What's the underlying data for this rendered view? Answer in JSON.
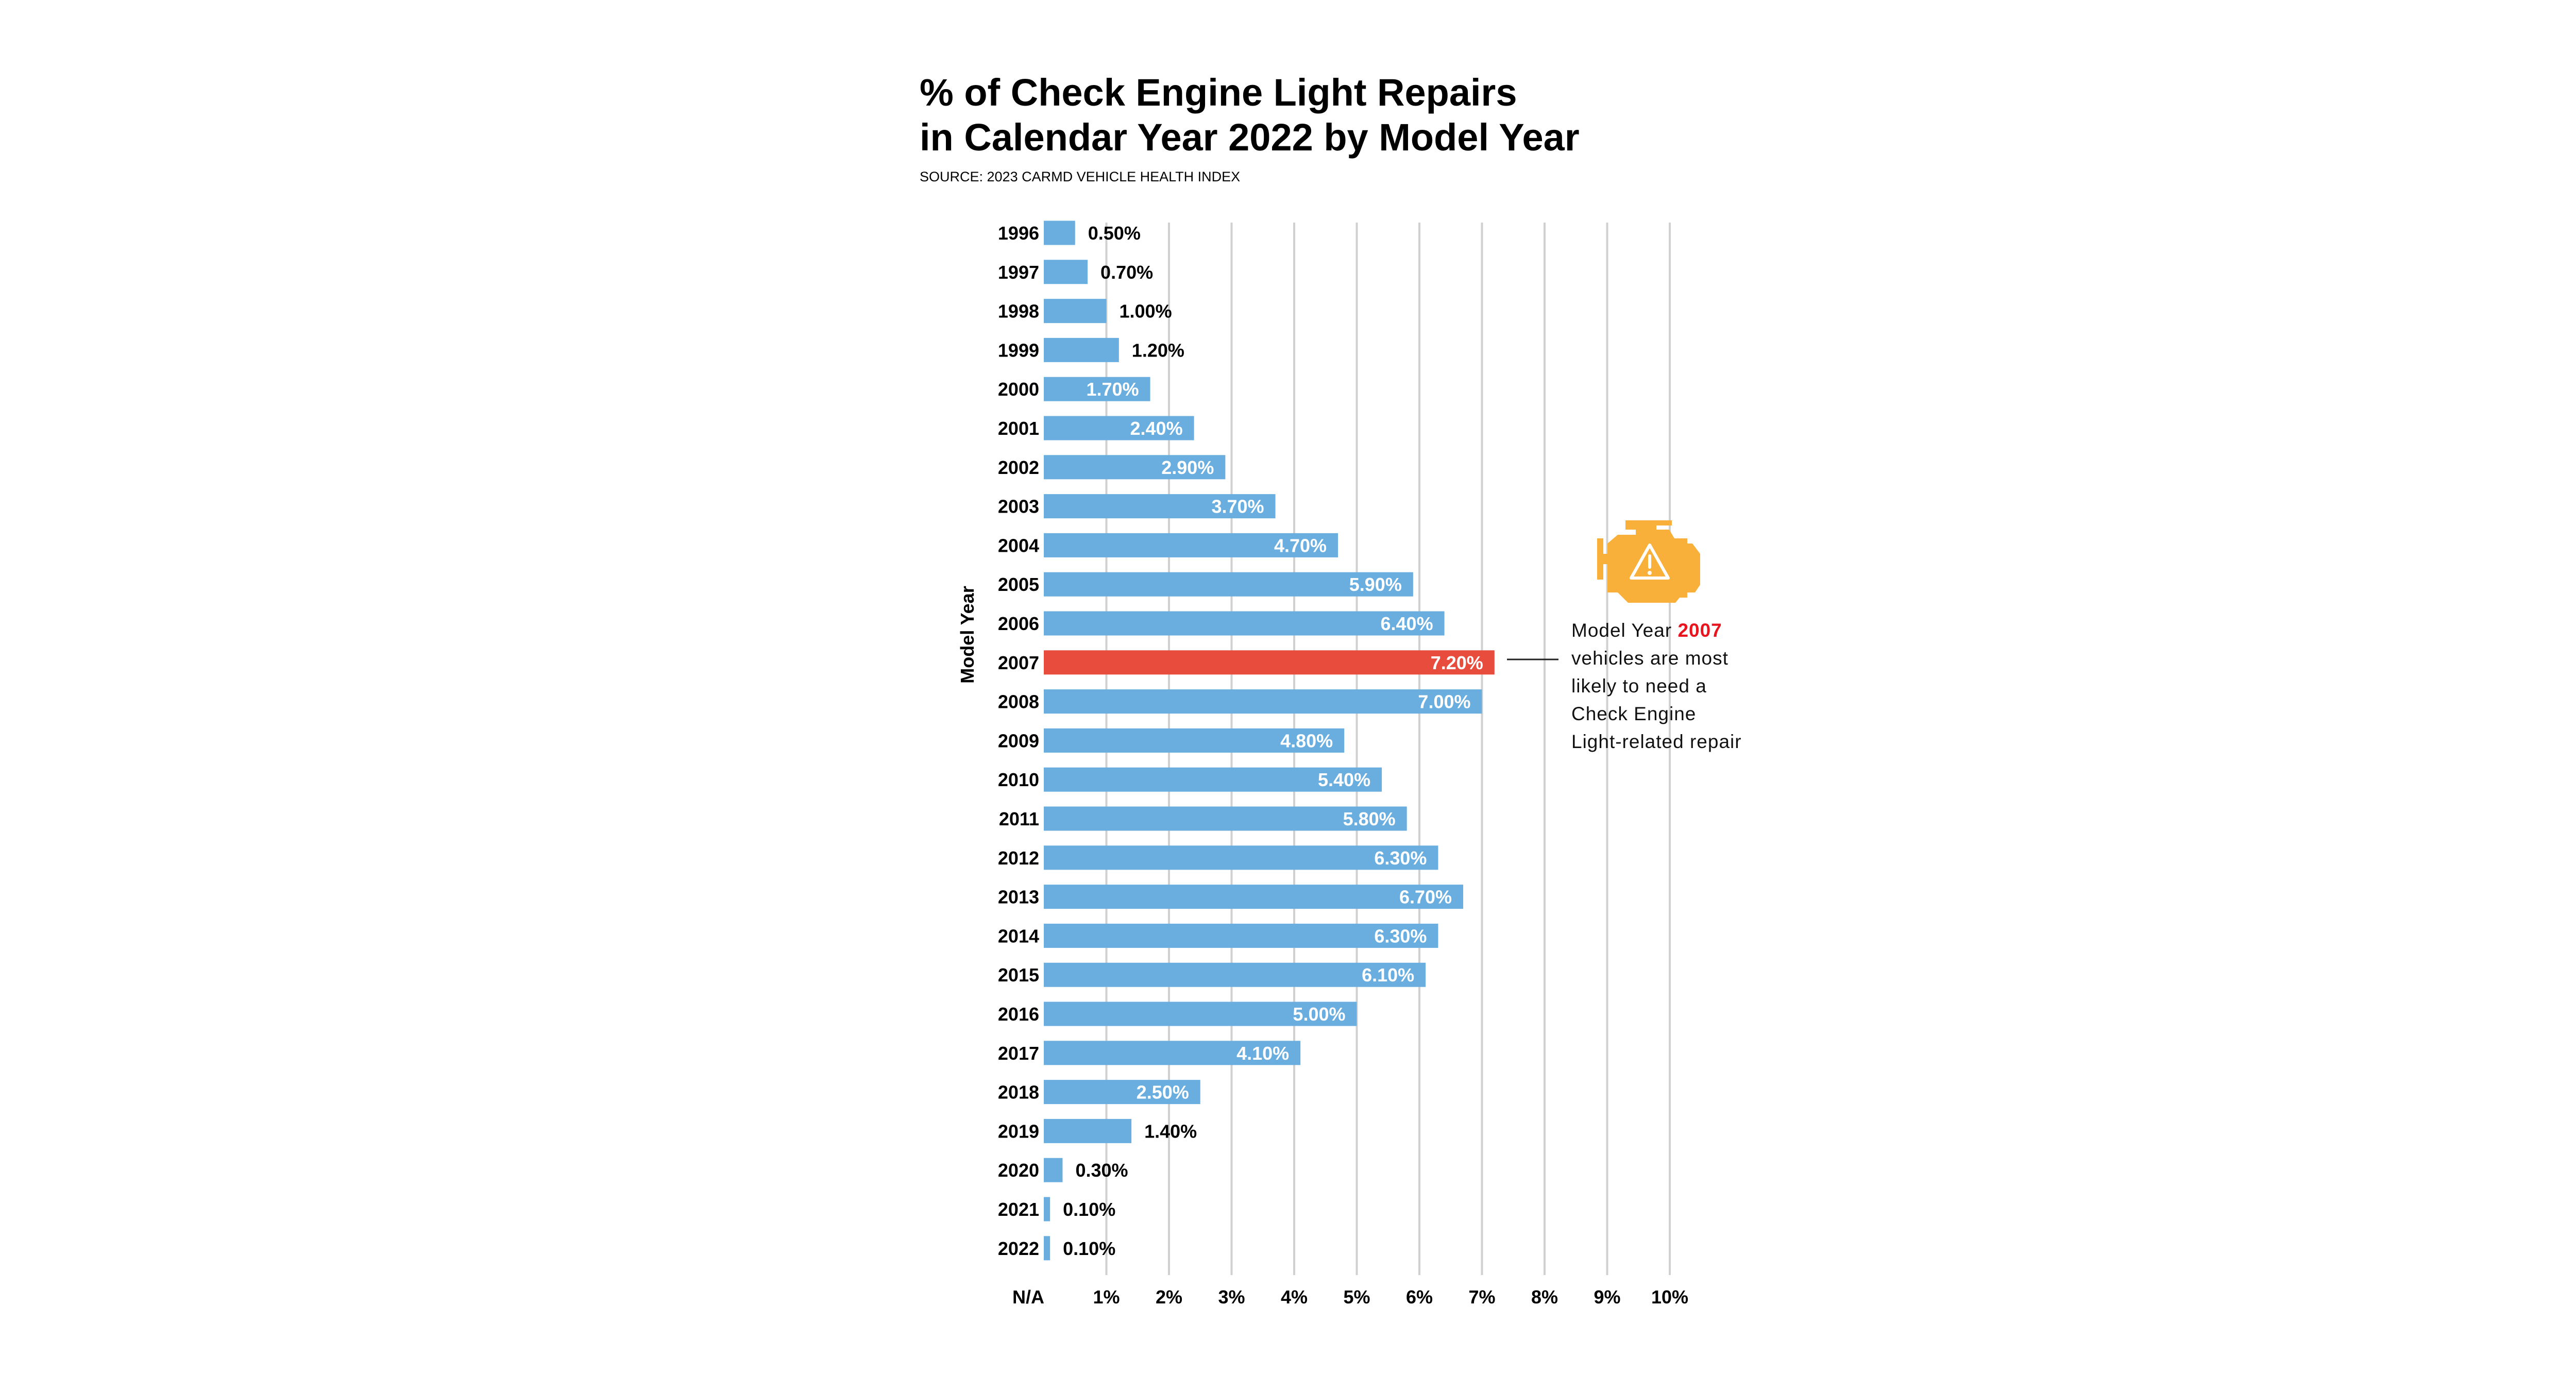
{
  "chart_data": {
    "type": "bar",
    "orientation": "horizontal",
    "title": "% of Check Engine Light Repairs in Calendar Year 2022 by Model Year",
    "title_lines": [
      "% of Check Engine Light Repairs",
      "in Calendar Year 2022 by Model Year"
    ],
    "subtitle": "SOURCE: 2023 CARMD VEHICLE HEALTH INDEX",
    "ylabel": "Model Year",
    "xlabel": "",
    "categories": [
      "1996",
      "1997",
      "1998",
      "1999",
      "2000",
      "2001",
      "2002",
      "2003",
      "2004",
      "2005",
      "2006",
      "2007",
      "2008",
      "2009",
      "2010",
      "2011",
      "2012",
      "2013",
      "2014",
      "2015",
      "2016",
      "2017",
      "2018",
      "2019",
      "2020",
      "2021",
      "2022"
    ],
    "values": [
      0.5,
      0.7,
      1.0,
      1.2,
      1.7,
      2.4,
      2.9,
      3.7,
      4.7,
      5.9,
      6.4,
      7.2,
      7.0,
      4.8,
      5.4,
      5.8,
      6.3,
      6.7,
      6.3,
      6.1,
      5.0,
      4.1,
      2.5,
      1.4,
      0.3,
      0.1,
      0.1
    ],
    "value_labels": [
      "0.50%",
      "0.70%",
      "1.00%",
      "1.20%",
      "1.70%",
      "2.40%",
      "2.90%",
      "3.70%",
      "4.70%",
      "5.90%",
      "6.40%",
      "7.20%",
      "7.00%",
      "4.80%",
      "5.40%",
      "5.80%",
      "6.30%",
      "6.70%",
      "6.30%",
      "6.10%",
      "5.00%",
      "4.10%",
      "2.50%",
      "1.40%",
      "0.30%",
      "0.10%",
      "0.10%"
    ],
    "xlim": [
      0,
      10
    ],
    "x_tick_labels": [
      "N/A",
      "1%",
      "2%",
      "3%",
      "4%",
      "5%",
      "6%",
      "7%",
      "8%",
      "9%",
      "10%"
    ],
    "grid": true,
    "highlight_category": "2007",
    "colors": {
      "bar": "#6aaee0",
      "highlight": "#e84c3d",
      "grid": "#d0d0d0"
    }
  },
  "annotation": {
    "icon": "check-engine-warning-icon",
    "icon_color": "#f9b03a",
    "lead": "Model Year ",
    "highlight": "2007",
    "highlight_color": "#e8141e",
    "lines": [
      "vehicles are most",
      "likely to need a",
      "Check Engine",
      "Light-related repair"
    ]
  }
}
